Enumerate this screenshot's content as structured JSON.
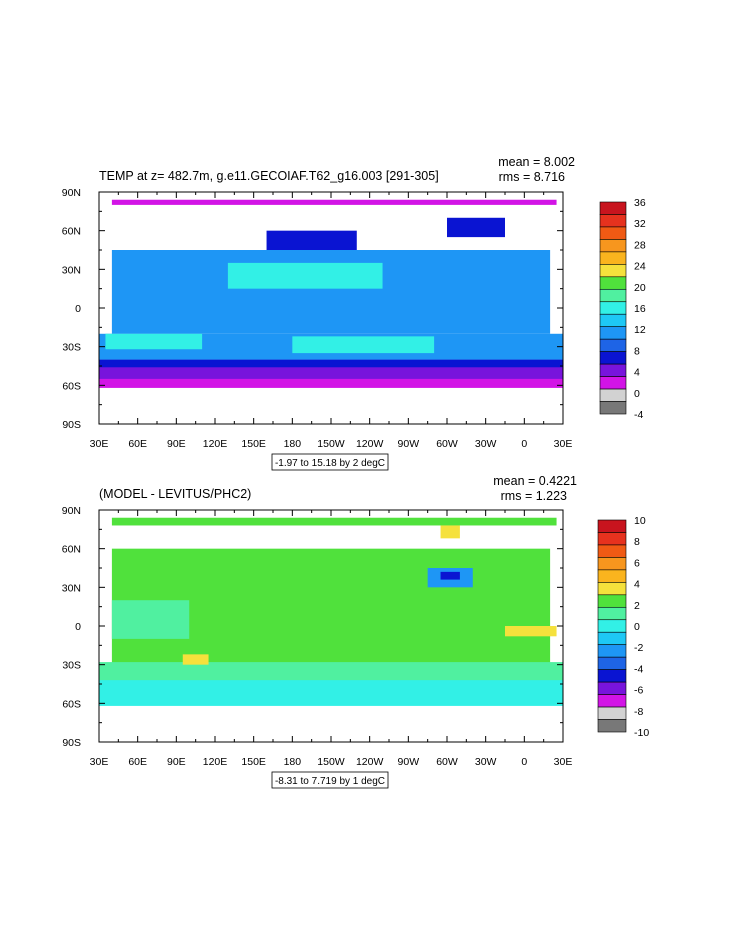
{
  "chart_data": [
    {
      "type": "heatmap",
      "title": "TEMP at z= 482.7m, g.e11.GECOIAF.T62_g16.003 [291-305]",
      "stats": {
        "mean": "mean = 8.002",
        "rms": "rms = 8.716"
      },
      "contour_info": "-1.97 to 15.18 by 2 degC",
      "x_ticks": [
        "30E",
        "60E",
        "90E",
        "120E",
        "150E",
        "180",
        "150W",
        "120W",
        "90W",
        "60W",
        "30W",
        "0",
        "30E"
      ],
      "y_ticks": [
        "90N",
        "60N",
        "30N",
        "0",
        "30S",
        "60S",
        "90S"
      ],
      "xlim": [
        30,
        390
      ],
      "ylim": [
        -90,
        90
      ],
      "colorbar": {
        "labels": [
          "36",
          "32",
          "28",
          "24",
          "20",
          "16",
          "12",
          "8",
          "4",
          "0",
          "-4"
        ],
        "colors": [
          "#c8141e",
          "#e6321e",
          "#f05a14",
          "#f7961e",
          "#fab41e",
          "#f5e13c",
          "#50e13c",
          "#50f0a0",
          "#32f0e6",
          "#1ec8f5",
          "#1e96f5",
          "#1e64e6",
          "#0a14d2",
          "#7814dc",
          "#d214e6",
          "#d2d2d2",
          "#787878"
        ]
      },
      "regions": [
        {
          "color": "#d214e6",
          "lat": [
            84,
            80
          ],
          "lon": [
            40,
            385
          ]
        },
        {
          "color": "#d214e6",
          "lat": [
            -47,
            -62
          ],
          "lon": [
            30,
            390
          ]
        },
        {
          "color": "#7814dc",
          "lat": [
            -45,
            -55
          ],
          "lon": [
            30,
            390
          ]
        },
        {
          "color": "#0a14d2",
          "lat": [
            -40,
            -46
          ],
          "lon": [
            30,
            390
          ]
        },
        {
          "color": "#1e96f5",
          "lat": [
            -20,
            -40
          ],
          "lon": [
            30,
            390
          ]
        },
        {
          "color": "#1e96f5",
          "lat": [
            45,
            -20
          ],
          "lon": [
            40,
            380
          ]
        },
        {
          "color": "#32f0e6",
          "lat": [
            -22,
            -35
          ],
          "lon": [
            180,
            290
          ]
        },
        {
          "color": "#32f0e6",
          "lat": [
            -20,
            -32
          ],
          "lon": [
            35,
            110
          ]
        },
        {
          "color": "#32f0e6",
          "lat": [
            35,
            15
          ],
          "lon": [
            130,
            250
          ]
        },
        {
          "color": "#0a14d2",
          "lat": [
            60,
            45
          ],
          "lon": [
            160,
            230
          ]
        },
        {
          "color": "#0a14d2",
          "lat": [
            70,
            55
          ],
          "lon": [
            300,
            345
          ]
        }
      ]
    },
    {
      "type": "heatmap",
      "title": "(MODEL - LEVITUS/PHC2)",
      "stats": {
        "mean": "mean = 0.4221",
        "rms": "rms = 1.223"
      },
      "contour_info": "-8.31 to 7.719 by 1 degC",
      "x_ticks": [
        "30E",
        "60E",
        "90E",
        "120E",
        "150E",
        "180",
        "150W",
        "120W",
        "90W",
        "60W",
        "30W",
        "0",
        "30E"
      ],
      "y_ticks": [
        "90N",
        "60N",
        "30N",
        "0",
        "30S",
        "60S",
        "90S"
      ],
      "xlim": [
        30,
        390
      ],
      "ylim": [
        -90,
        90
      ],
      "colorbar": {
        "labels": [
          "10",
          "8",
          "6",
          "4",
          "2",
          "0",
          "-2",
          "-4",
          "-6",
          "-8",
          "-10"
        ],
        "colors": [
          "#c8141e",
          "#e6321e",
          "#f05a14",
          "#f7961e",
          "#fab41e",
          "#f5e13c",
          "#50e13c",
          "#50f0a0",
          "#32f0e6",
          "#1ec8f5",
          "#1e96f5",
          "#1e64e6",
          "#0a14d2",
          "#7814dc",
          "#d214e6",
          "#d2d2d2",
          "#787878"
        ]
      },
      "regions": [
        {
          "color": "#50e13c",
          "lat": [
            84,
            78
          ],
          "lon": [
            40,
            385
          ]
        },
        {
          "color": "#50e13c",
          "lat": [
            60,
            -30
          ],
          "lon": [
            40,
            380
          ]
        },
        {
          "color": "#50f0a0",
          "lat": [
            -28,
            -45
          ],
          "lon": [
            30,
            390
          ]
        },
        {
          "color": "#32f0e6",
          "lat": [
            -42,
            -62
          ],
          "lon": [
            30,
            390
          ]
        },
        {
          "color": "#50f0a0",
          "lat": [
            20,
            -10
          ],
          "lon": [
            40,
            100
          ]
        },
        {
          "color": "#f5e13c",
          "lat": [
            -22,
            -30
          ],
          "lon": [
            95,
            115
          ]
        },
        {
          "color": "#f5e13c",
          "lat": [
            0,
            -8
          ],
          "lon": [
            345,
            385
          ]
        },
        {
          "color": "#1e96f5",
          "lat": [
            45,
            30
          ],
          "lon": [
            285,
            320
          ]
        },
        {
          "color": "#0a14d2",
          "lat": [
            42,
            36
          ],
          "lon": [
            295,
            310
          ]
        },
        {
          "color": "#f5e13c",
          "lat": [
            78,
            68
          ],
          "lon": [
            295,
            310
          ]
        }
      ]
    }
  ]
}
